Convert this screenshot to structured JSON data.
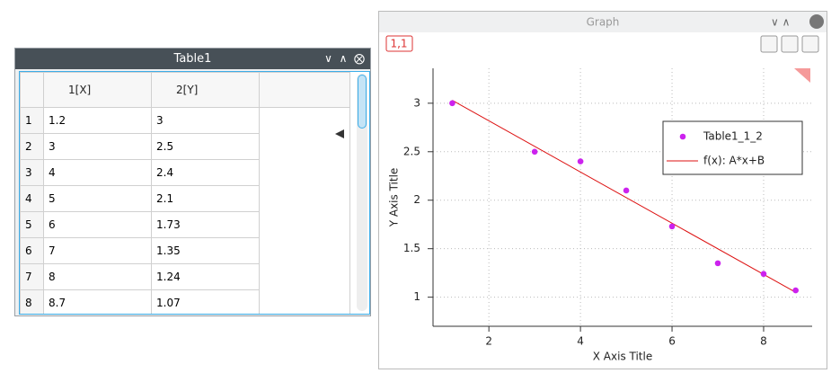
{
  "table_window": {
    "title": "Table1",
    "columns": [
      "1[X]",
      "2[Y]"
    ],
    "row_numbers": [
      1,
      2,
      3,
      4,
      5,
      6,
      7,
      8
    ],
    "rows": [
      [
        1.2,
        3
      ],
      [
        3,
        2.5
      ],
      [
        4,
        2.4
      ],
      [
        5,
        2.1
      ],
      [
        6,
        1.73
      ],
      [
        7,
        1.35
      ],
      [
        8,
        1.24
      ],
      [
        8.7,
        1.07
      ]
    ]
  },
  "graph_window": {
    "title": "Graph",
    "layer_button": "1,1",
    "chart": {
      "type": "scatter",
      "x_label": "X Axis Title",
      "y_label": "Y Axis Title",
      "series": [
        {
          "name": "Table1_1_2",
          "color": "#cc22ee",
          "x": [
            1.2,
            3,
            4,
            5,
            6,
            7,
            8,
            8.7
          ],
          "values": [
            3,
            2.5,
            2.4,
            2.1,
            1.73,
            1.35,
            1.24,
            1.07
          ]
        }
      ],
      "fit": {
        "name": "f(x): A*x+B",
        "color": "#dd1111",
        "x": [
          1.2,
          8.7
        ],
        "values": [
          3.03,
          1.05
        ]
      },
      "xlim": [
        0.78,
        9.06
      ],
      "ylim": [
        0.7,
        3.36
      ],
      "xticks": [
        2,
        4,
        6,
        8
      ],
      "yticks": [
        1,
        1.5,
        2,
        2.5,
        3
      ],
      "grid": true
    }
  }
}
